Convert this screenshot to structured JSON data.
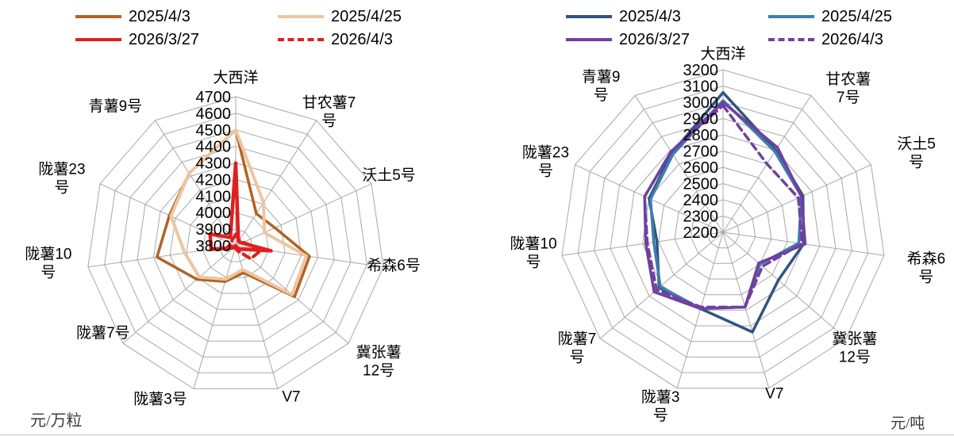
{
  "chart_data": [
    {
      "id": "left",
      "type": "radar",
      "unit": "元/万粒",
      "legend_position": "top",
      "grid": true,
      "axis": {
        "min": 3800,
        "max": 4700,
        "step": 100,
        "tick_labels": [
          "3800",
          "3900",
          "4000",
          "4100",
          "4200",
          "4300",
          "4400",
          "4500",
          "4600",
          "4700"
        ]
      },
      "categories": [
        {
          "name": "大西洋",
          "lines": [
            "大西洋"
          ]
        },
        {
          "name": "甘农薯7号",
          "lines": [
            "甘农薯7",
            "号"
          ]
        },
        {
          "name": "沃土5号",
          "lines": [
            "沃土5号"
          ]
        },
        {
          "name": "希森6号",
          "lines": [
            "希森6号"
          ]
        },
        {
          "name": "冀张薯12号",
          "lines": [
            "冀张薯",
            "12号"
          ]
        },
        {
          "name": "V7",
          "lines": [
            "V7"
          ]
        },
        {
          "name": "陇薯3号",
          "lines": [
            "陇薯3号"
          ]
        },
        {
          "name": "陇薯7号",
          "lines": [
            "陇薯7号"
          ]
        },
        {
          "name": "陇薯10号",
          "lines": [
            "陇薯10",
            "号"
          ]
        },
        {
          "name": "陇薯23号",
          "lines": [
            "陇薯23",
            "号"
          ]
        },
        {
          "name": "青薯9号",
          "lines": [
            "青薯9号"
          ]
        }
      ],
      "series": [
        {
          "name": "2025/4/3",
          "color": "#b06425",
          "dash": false,
          "width": 3.5,
          "values": [
            4500,
            4030,
            4060,
            4250,
            4270,
            3970,
            4025,
            4110,
            4280,
            4240,
            4320
          ]
        },
        {
          "name": "2025/4/25",
          "color": "#eec59f",
          "dash": false,
          "width": 4,
          "values": [
            4500,
            4110,
            3990,
            4230,
            4250,
            3950,
            4010,
            4090,
            4110,
            4230,
            4320
          ]
        },
        {
          "name": "2026/3/27",
          "color": "#e01f1f",
          "dash": false,
          "width": 4.5,
          "values": [
            4300,
            3830,
            3840,
            4015,
            3830,
            3810,
            3800,
            3820,
            3950,
            3970,
            3860
          ]
        },
        {
          "name": "2026/4/3",
          "color": "#e01f1f",
          "dash": true,
          "width": 4,
          "values": [
            3870,
            3840,
            3850,
            3960,
            3920,
            3830,
            3810,
            3800,
            3850,
            3830,
            3840
          ]
        }
      ]
    },
    {
      "id": "right",
      "type": "radar",
      "unit": "元/吨",
      "legend_position": "top",
      "grid": true,
      "axis": {
        "min": 2200,
        "max": 3200,
        "step": 100,
        "tick_labels": [
          "2200",
          "2300",
          "2400",
          "2500",
          "2600",
          "2700",
          "2800",
          "2900",
          "3000",
          "3100",
          "3200"
        ]
      },
      "categories": [
        {
          "name": "大西洋",
          "lines": [
            "大西洋"
          ]
        },
        {
          "name": "甘农薯7号",
          "lines": [
            "甘农薯",
            "7号"
          ]
        },
        {
          "name": "沃土5号",
          "lines": [
            "沃土5",
            "号"
          ]
        },
        {
          "name": "希森6号",
          "lines": [
            "希森6",
            "号"
          ]
        },
        {
          "name": "冀张薯12号",
          "lines": [
            "冀张薯",
            "12号"
          ]
        },
        {
          "name": "V7",
          "lines": [
            "V7"
          ]
        },
        {
          "name": "陇薯3号",
          "lines": [
            "陇薯3",
            "号"
          ]
        },
        {
          "name": "陇薯7号",
          "lines": [
            "陇薯7",
            "号"
          ]
        },
        {
          "name": "陇薯10号",
          "lines": [
            "陇薯10",
            "号"
          ]
        },
        {
          "name": "陇薯23号",
          "lines": [
            "陇薯23",
            "号"
          ]
        },
        {
          "name": "青薯9号",
          "lines": [
            "青薯9",
            "号"
          ]
        }
      ],
      "series": [
        {
          "name": "2025/4/3",
          "color": "#2f5480",
          "dash": false,
          "width": 3.5,
          "values": [
            3060,
            2800,
            2740,
            2700,
            2650,
            2840,
            2690,
            2720,
            2610,
            2700,
            2780
          ]
        },
        {
          "name": "2025/4/25",
          "color": "#3d7fad",
          "dash": false,
          "width": 3.5,
          "values": [
            3010,
            2790,
            2730,
            2670,
            2500,
            2680,
            2690,
            2710,
            2630,
            2690,
            2770
          ]
        },
        {
          "name": "2026/3/27",
          "color": "#7040a0",
          "dash": false,
          "width": 3.5,
          "values": [
            3000,
            2820,
            2730,
            2710,
            2490,
            2680,
            2690,
            2760,
            2680,
            2730,
            2790
          ]
        },
        {
          "name": "2026/4/3",
          "color": "#7040a0",
          "dash": true,
          "width": 3.5,
          "values": [
            2980,
            2700,
            2710,
            2690,
            2520,
            2680,
            2680,
            2740,
            2670,
            2730,
            2790
          ]
        }
      ]
    }
  ]
}
